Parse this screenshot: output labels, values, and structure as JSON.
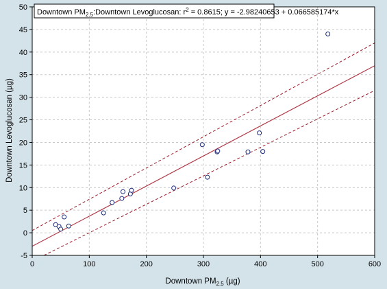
{
  "chart_data": {
    "type": "scatter",
    "title": "",
    "xlabel": "Downtown PM2.5 (µg)",
    "ylabel": "Downtown Levoglucosan (µg)",
    "xlim": [
      0,
      600
    ],
    "ylim": [
      -5,
      50
    ],
    "x_ticks": [
      0,
      100,
      200,
      300,
      400,
      500,
      600
    ],
    "y_ticks": [
      -5,
      0,
      5,
      10,
      15,
      20,
      25,
      30,
      35,
      40,
      45,
      50
    ],
    "grid": true,
    "legend": {
      "placement": "top-left",
      "parts": {
        "a": "Downtown PM",
        "a_sub": "2.5",
        "b": ":Downtown Levoglucosan:  r",
        "b_sup": "2",
        "c": " = 0.8615;  y = -2.98240653 + 0.066585174*x"
      }
    },
    "xlabel_parts": {
      "main": "Downtown PM",
      "sub": "2.5",
      "unit": " (µg)"
    },
    "points": [
      {
        "x": 41,
        "y": 1.8
      },
      {
        "x": 47,
        "y": 1.4
      },
      {
        "x": 50,
        "y": 0.8
      },
      {
        "x": 56,
        "y": 3.5
      },
      {
        "x": 64,
        "y": 1.5
      },
      {
        "x": 125,
        "y": 4.4
      },
      {
        "x": 140,
        "y": 6.7
      },
      {
        "x": 157,
        "y": 7.6
      },
      {
        "x": 159,
        "y": 9.1
      },
      {
        "x": 172,
        "y": 8.6
      },
      {
        "x": 174,
        "y": 9.4
      },
      {
        "x": 248,
        "y": 9.9
      },
      {
        "x": 298,
        "y": 19.5
      },
      {
        "x": 307,
        "y": 12.3
      },
      {
        "x": 324,
        "y": 17.9
      },
      {
        "x": 325,
        "y": 18.1
      },
      {
        "x": 378,
        "y": 17.9
      },
      {
        "x": 398,
        "y": 22.1
      },
      {
        "x": 404,
        "y": 18.0
      },
      {
        "x": 518,
        "y": 44.0
      }
    ],
    "regression": {
      "intercept": -2.98240653,
      "slope": 0.066585174
    },
    "confidence_band": {
      "upper": [
        {
          "x": 0,
          "y": 0.5
        },
        {
          "x": 600,
          "y": 42.0
        }
      ],
      "lower": [
        {
          "x": 0,
          "y": -6.3
        },
        {
          "x": 600,
          "y": 31.5
        }
      ]
    },
    "colors": {
      "background": "#d4e3ea",
      "plot_background": "#ffffff",
      "regression_line": "#b03a48",
      "band_line": "#9a1a2a",
      "point_stroke": "#1c2a78",
      "grid": "#c8c8c8"
    }
  }
}
